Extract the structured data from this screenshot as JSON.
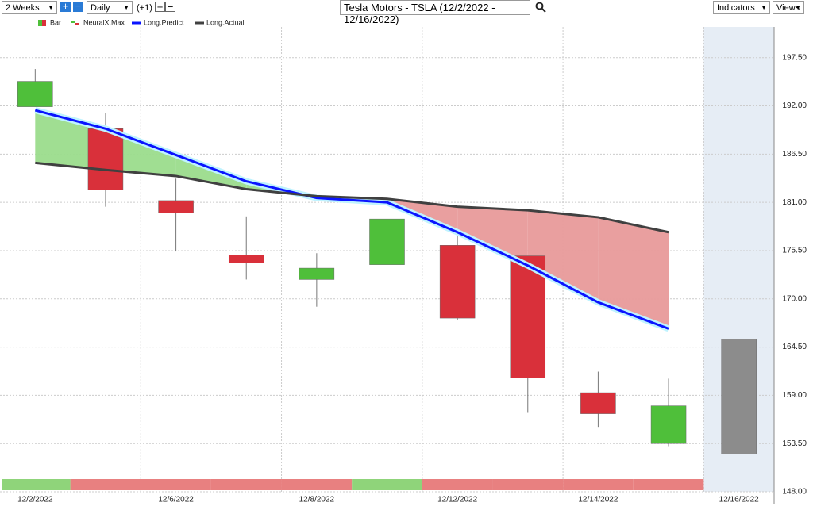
{
  "toolbar": {
    "period": "2 Weeks",
    "interval": "Daily",
    "offset": "(+1)",
    "indicators": "Indicators",
    "views": "Views"
  },
  "chart_data": {
    "type": "candlestick",
    "title": "Tesla Motors - TSLA (12/2/2022 - 12/16/2022)",
    "categories": [
      "12/2/2022",
      null,
      "12/6/2022",
      null,
      "12/8/2022",
      null,
      "12/12/2022",
      null,
      "12/14/2022",
      null,
      "12/16/2022"
    ],
    "ylim": [
      148,
      201
    ],
    "yticks": [
      {
        "value": 148,
        "label": "148.00"
      },
      {
        "value": 153.5,
        "label": "153.50"
      },
      {
        "value": 159,
        "label": "159.00"
      },
      {
        "value": 164.5,
        "label": "164.50"
      },
      {
        "value": 170,
        "label": "170.00"
      },
      {
        "value": 175.5,
        "label": "175.50"
      },
      {
        "value": 181,
        "label": "181.00"
      },
      {
        "value": 186.5,
        "label": "186.50"
      },
      {
        "value": 192,
        "label": "192.00"
      },
      {
        "value": 197.5,
        "label": "197.50"
      }
    ],
    "grid": true,
    "series": [
      {
        "name": "Bar",
        "type": "candlestick",
        "open": [
          191.9,
          189.4,
          181.2,
          175.0,
          172.2,
          173.9,
          176.1,
          174.9,
          159.3,
          153.5,
          165.4
        ],
        "high": [
          196.2,
          191.2,
          183.7,
          179.4,
          175.2,
          182.5,
          177.2,
          174.9,
          161.7,
          160.9,
          165.4
        ],
        "low": [
          191.9,
          180.5,
          175.4,
          172.2,
          169.1,
          173.4,
          167.6,
          157.0,
          155.4,
          153.2,
          152.3
        ],
        "close": [
          194.8,
          182.4,
          179.8,
          174.1,
          173.5,
          179.1,
          167.8,
          161.0,
          156.9,
          157.8,
          152.3
        ],
        "colors": [
          "#4fbf3a",
          "#d9303a",
          "#d9303a",
          "#d9303a",
          "#4fbf3a",
          "#4fbf3a",
          "#d9303a",
          "#d9303a",
          "#d9303a",
          "#4fbf3a",
          "#8c8c8c"
        ]
      },
      {
        "name": "NeuralX.Max",
        "type": "strip",
        "colors": [
          "#8fd47a",
          "#e88080",
          "#e88080",
          "#e88080",
          "#e88080",
          "#8fd47a",
          "#e88080",
          "#e88080",
          "#e88080",
          "#e88080",
          null
        ]
      },
      {
        "name": "Long.Predict",
        "type": "line",
        "color": "#0a14ff",
        "values": [
          191.5,
          189.4,
          186.4,
          183.4,
          181.5,
          181.0,
          177.6,
          173.8,
          169.6,
          166.6,
          null
        ]
      },
      {
        "name": "Long.Actual",
        "type": "line",
        "color": "#404040",
        "values": [
          185.5,
          184.7,
          184.0,
          182.5,
          181.7,
          181.4,
          180.5,
          180.1,
          179.3,
          177.6,
          null
        ]
      }
    ],
    "fill_colors": [
      "#9bdc8c",
      "#e89a9a"
    ]
  }
}
